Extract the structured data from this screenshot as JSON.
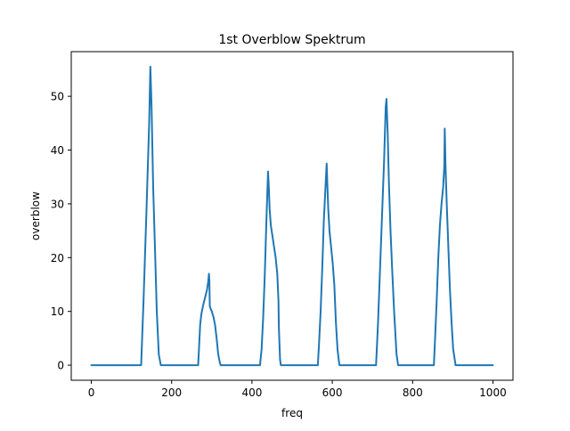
{
  "chart_data": {
    "type": "line",
    "title": "1st Overblow Spektrum",
    "xlabel": "freq",
    "ylabel": "overblow",
    "xlim": [
      -50,
      1050
    ],
    "ylim": [
      -2.8,
      58.3
    ],
    "xticks": [
      0,
      200,
      400,
      600,
      800,
      1000
    ],
    "yticks": [
      0,
      10,
      20,
      30,
      40,
      50
    ],
    "grid": false,
    "legend": "none",
    "series": [
      {
        "color": "#1f77b4",
        "x": [
          0,
          124,
          130,
          137,
          144,
          147,
          150,
          154,
          158,
          163,
          168,
          173,
          266,
          268,
          271,
          274,
          278,
          283,
          288,
          291,
          293,
          294,
          295,
          297,
          300,
          304,
          308,
          312,
          316,
          320,
          322,
          420,
          424,
          428,
          432,
          436,
          440,
          442,
          444,
          447,
          451,
          455,
          459,
          463,
          466,
          467,
          469,
          470,
          472,
          564,
          567,
          571,
          575,
          579,
          583,
          586,
          588,
          590,
          593,
          597,
          601,
          605,
          609,
          613,
          616,
          618,
          709,
          714,
          719,
          724,
          729,
          733,
          735,
          738,
          741,
          745,
          749,
          754,
          760,
          764,
          853,
          856,
          860,
          864,
          868,
          872,
          876,
          879,
          880,
          882,
          885,
          889,
          893,
          897,
          901,
          905,
          907,
          1000
        ],
        "y": [
          0,
          0,
          12,
          28,
          45,
          55.5,
          48,
          33,
          23,
          10,
          2,
          0,
          0,
          3,
          7.5,
          9.5,
          11,
          12.5,
          14,
          15.5,
          17,
          15.5,
          11,
          10.5,
          10,
          9,
          7.5,
          5,
          2,
          0.5,
          0,
          0,
          3,
          9,
          17,
          27,
          36,
          33,
          29,
          26,
          24,
          22,
          20,
          17,
          12,
          7,
          3,
          1,
          0,
          0,
          4,
          10,
          18,
          27,
          33,
          37.5,
          33,
          29,
          25,
          22,
          19,
          15,
          8,
          3,
          1,
          0,
          0,
          8,
          18,
          28,
          38,
          48,
          49.5,
          43,
          34,
          25,
          18,
          10,
          2,
          0,
          0,
          5,
          12,
          20,
          26,
          30,
          33,
          37,
          44,
          37,
          30,
          22,
          14,
          8,
          3,
          1,
          0,
          0
        ]
      }
    ]
  }
}
